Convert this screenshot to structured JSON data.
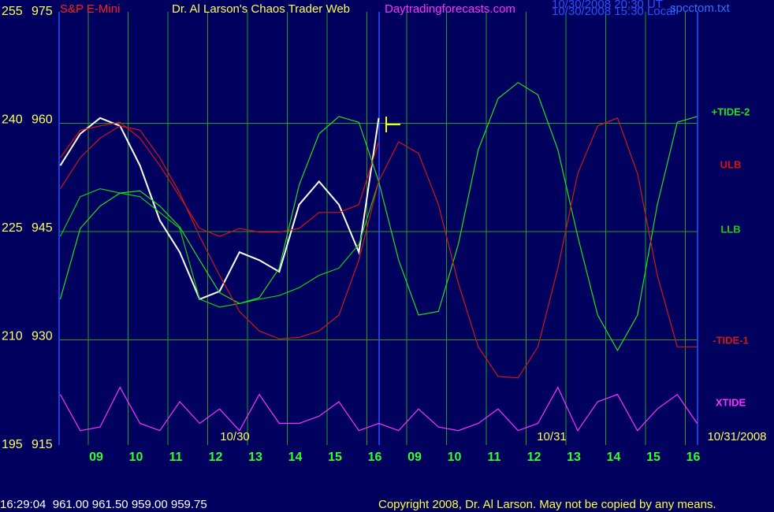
{
  "chart_data": {
    "type": "line",
    "instrument": "S&P E-Mini",
    "title": "Dr. Al Larson's Chaos Trader Web",
    "site": "Daytradingforecasts.com",
    "timestamp_ut": "10/30/2008 20:30 UT",
    "timestamp_local": "10/30/2008 15:30 Local",
    "file": "spcctom.txt",
    "date_labels": [
      "10/30",
      "10/31",
      "10/31/2008"
    ],
    "status": "16:29:04  961.00 961.50 959.00 959.75",
    "copyright": "Copyright 2008, Dr. Al Larson. May not be copied by any means.",
    "x": [
      -0.9,
      -0.4,
      0.1,
      0.6,
      1.1,
      1.6,
      2.1,
      2.6,
      3.1,
      3.6,
      4.1,
      4.6,
      5.1,
      5.6,
      6.1,
      6.6,
      7.1,
      7.6,
      8.1,
      8.6,
      9.1,
      9.6,
      10.1,
      10.6,
      11.1,
      11.6,
      12.1,
      12.6,
      13.1,
      13.6,
      14.1,
      14.6,
      15.1
    ],
    "xlim": [
      -0.9,
      15.1
    ],
    "xticks": [
      {
        "value": 0,
        "label": "09"
      },
      {
        "value": 1,
        "label": "10"
      },
      {
        "value": 2,
        "label": "11"
      },
      {
        "value": 3,
        "label": "12"
      },
      {
        "value": 4,
        "label": "13"
      },
      {
        "value": 5,
        "label": "14"
      },
      {
        "value": 6,
        "label": "15"
      },
      {
        "value": 7,
        "label": "16"
      },
      {
        "value": 8,
        "label": "09"
      },
      {
        "value": 9,
        "label": "10"
      },
      {
        "value": 10,
        "label": "11"
      },
      {
        "value": 11,
        "label": "12"
      },
      {
        "value": 12,
        "label": "13"
      },
      {
        "value": 13,
        "label": "14"
      },
      {
        "value": 14,
        "label": "15"
      },
      {
        "value": 15,
        "label": "16"
      }
    ],
    "ylim": [
      915,
      975
    ],
    "yticks": [
      915,
      930,
      945,
      960,
      975
    ],
    "y2lim": [
      195,
      255
    ],
    "y2ticks": [
      195,
      210,
      225,
      240,
      255
    ],
    "grid": true,
    "series": [
      {
        "color": "#ffffff",
        "values": [
          953.7,
          958.1,
          960.3,
          959.2,
          953.7,
          946.1,
          941.7,
          935.2,
          936.3,
          941.7,
          940.6,
          939.0,
          948.3,
          951.5,
          948.3,
          941.7,
          960.3,
          null,
          null,
          null,
          null,
          null,
          null,
          null,
          null,
          null,
          null,
          null,
          null,
          null,
          null,
          null,
          null
        ]
      },
      {
        "name": "ULB",
        "color": "#e01010",
        "values": [
          954.8,
          958.6,
          959.2,
          959.7,
          957.5,
          953.7,
          949.4,
          945.0,
          943.9,
          945.0,
          944.5,
          944.5,
          945.0,
          947.2,
          947.2,
          948.3,
          957.0,
          null,
          null,
          null,
          null,
          null,
          null,
          null,
          null,
          null,
          null,
          null,
          null,
          null,
          null,
          null,
          null
        ]
      },
      {
        "name": "LLB",
        "color": "#10d010",
        "values": [
          943.9,
          949.4,
          950.5,
          949.9,
          949.4,
          947.2,
          945.0,
          935.2,
          934.1,
          934.6,
          935.2,
          935.7,
          936.8,
          938.5,
          939.5,
          942.8,
          951.5,
          null,
          null,
          null,
          null,
          null,
          null,
          null,
          null,
          null,
          null,
          null,
          null,
          null,
          null,
          null,
          null
        ]
      },
      {
        "name": "+TIDE-2",
        "color": "#20e020",
        "values": [
          935.2,
          945.0,
          948.1,
          949.9,
          950.2,
          948.1,
          945.2,
          940.6,
          936.1,
          934.6,
          935.4,
          939.5,
          951.0,
          958.1,
          960.5,
          959.7,
          951.5,
          940.6,
          933.0,
          933.5,
          942.8,
          955.9,
          963.0,
          965.2,
          963.5,
          955.9,
          943.9,
          933.0,
          928.1,
          933.0,
          948.3,
          959.7,
          960.5
        ]
      },
      {
        "name": "-TIDE-1",
        "color": "#d01818",
        "values": [
          950.5,
          954.8,
          957.5,
          959.2,
          958.6,
          954.8,
          949.9,
          943.9,
          938.5,
          933.5,
          930.8,
          929.7,
          929.9,
          930.8,
          933.0,
          940.6,
          951.5,
          957.0,
          955.4,
          948.3,
          937.4,
          928.6,
          924.5,
          924.3,
          928.6,
          939.5,
          952.6,
          959.2,
          960.3,
          952.6,
          938.5,
          928.6,
          928.6
        ]
      },
      {
        "name": "XTIDE",
        "color": "#ff30ff",
        "axis": "y2",
        "values": [
          202,
          197,
          197.5,
          203,
          198,
          197,
          201,
          198,
          200,
          197,
          202,
          198,
          198,
          199,
          201,
          197,
          198,
          197,
          200,
          197.5,
          197,
          198,
          200,
          197,
          198,
          203,
          197,
          201,
          202,
          197,
          200,
          202,
          198
        ]
      }
    ]
  }
}
